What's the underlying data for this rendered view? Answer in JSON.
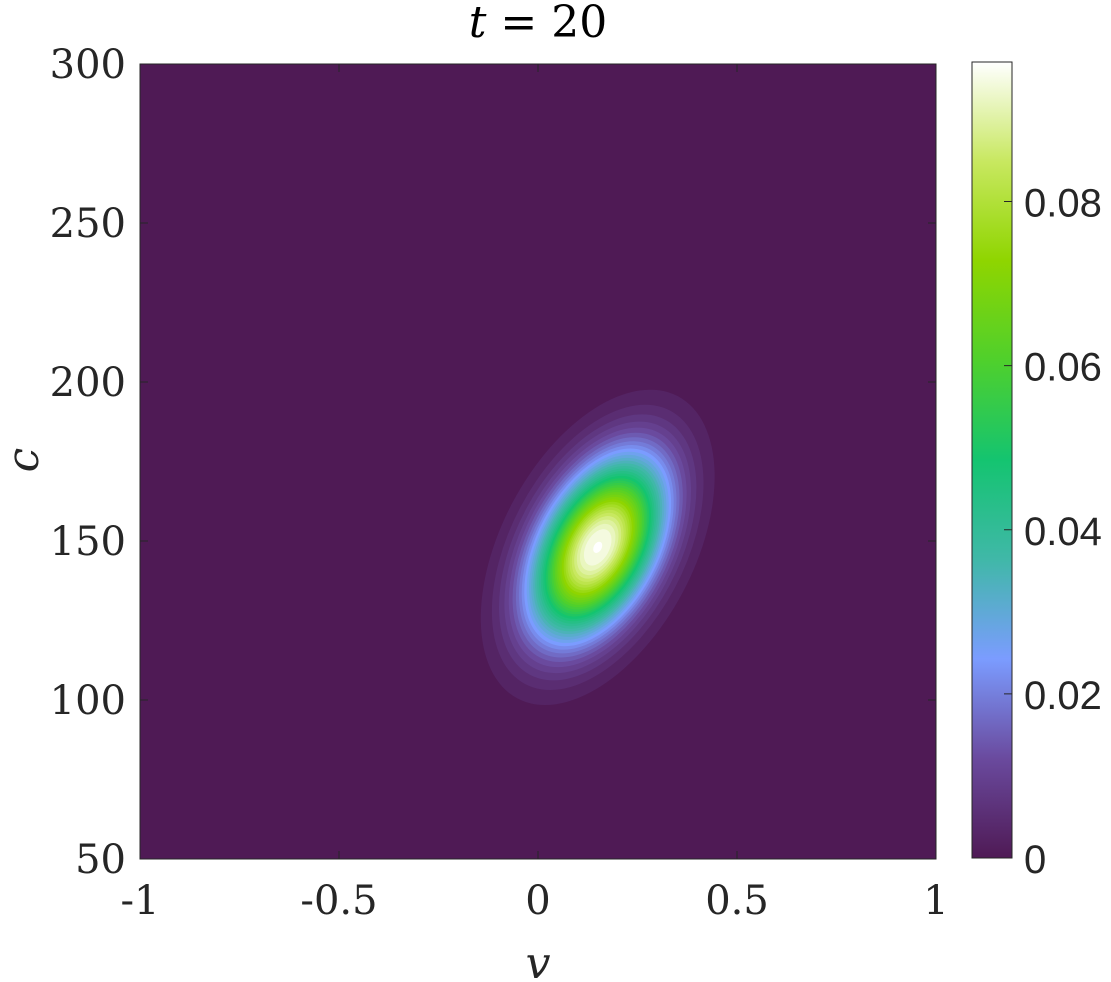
{
  "chart_data": {
    "type": "heatmap",
    "subtype": "filled-contour",
    "title_var": "t",
    "title_eq": " = 20",
    "xlabel": "v",
    "ylabel": "c",
    "xlim": [
      -1,
      1
    ],
    "ylim": [
      50,
      300
    ],
    "xticks": [
      -1,
      -0.5,
      0,
      0.5,
      1
    ],
    "xtick_labels": [
      "-1",
      "-0.5",
      "0",
      "0.5",
      "1"
    ],
    "yticks": [
      50,
      100,
      150,
      200,
      250,
      300
    ],
    "ytick_labels": [
      "50",
      "100",
      "150",
      "200",
      "250",
      "300"
    ],
    "colorbar": {
      "clim": [
        0,
        0.097
      ],
      "ticks": [
        0,
        0.02,
        0.04,
        0.06,
        0.08
      ],
      "tick_labels": [
        "0",
        "0.02",
        "0.04",
        "0.06",
        "0.08"
      ],
      "colormap": [
        "#4f1a55",
        "#6a4a9e",
        "#7b9cff",
        "#40b8a8",
        "#14c470",
        "#4fd02c",
        "#8fd500",
        "#c8e860",
        "#ffffff"
      ]
    },
    "peak": {
      "v": 0.15,
      "c": 148,
      "value": 0.097
    },
    "background_value": 0,
    "grid": false
  }
}
